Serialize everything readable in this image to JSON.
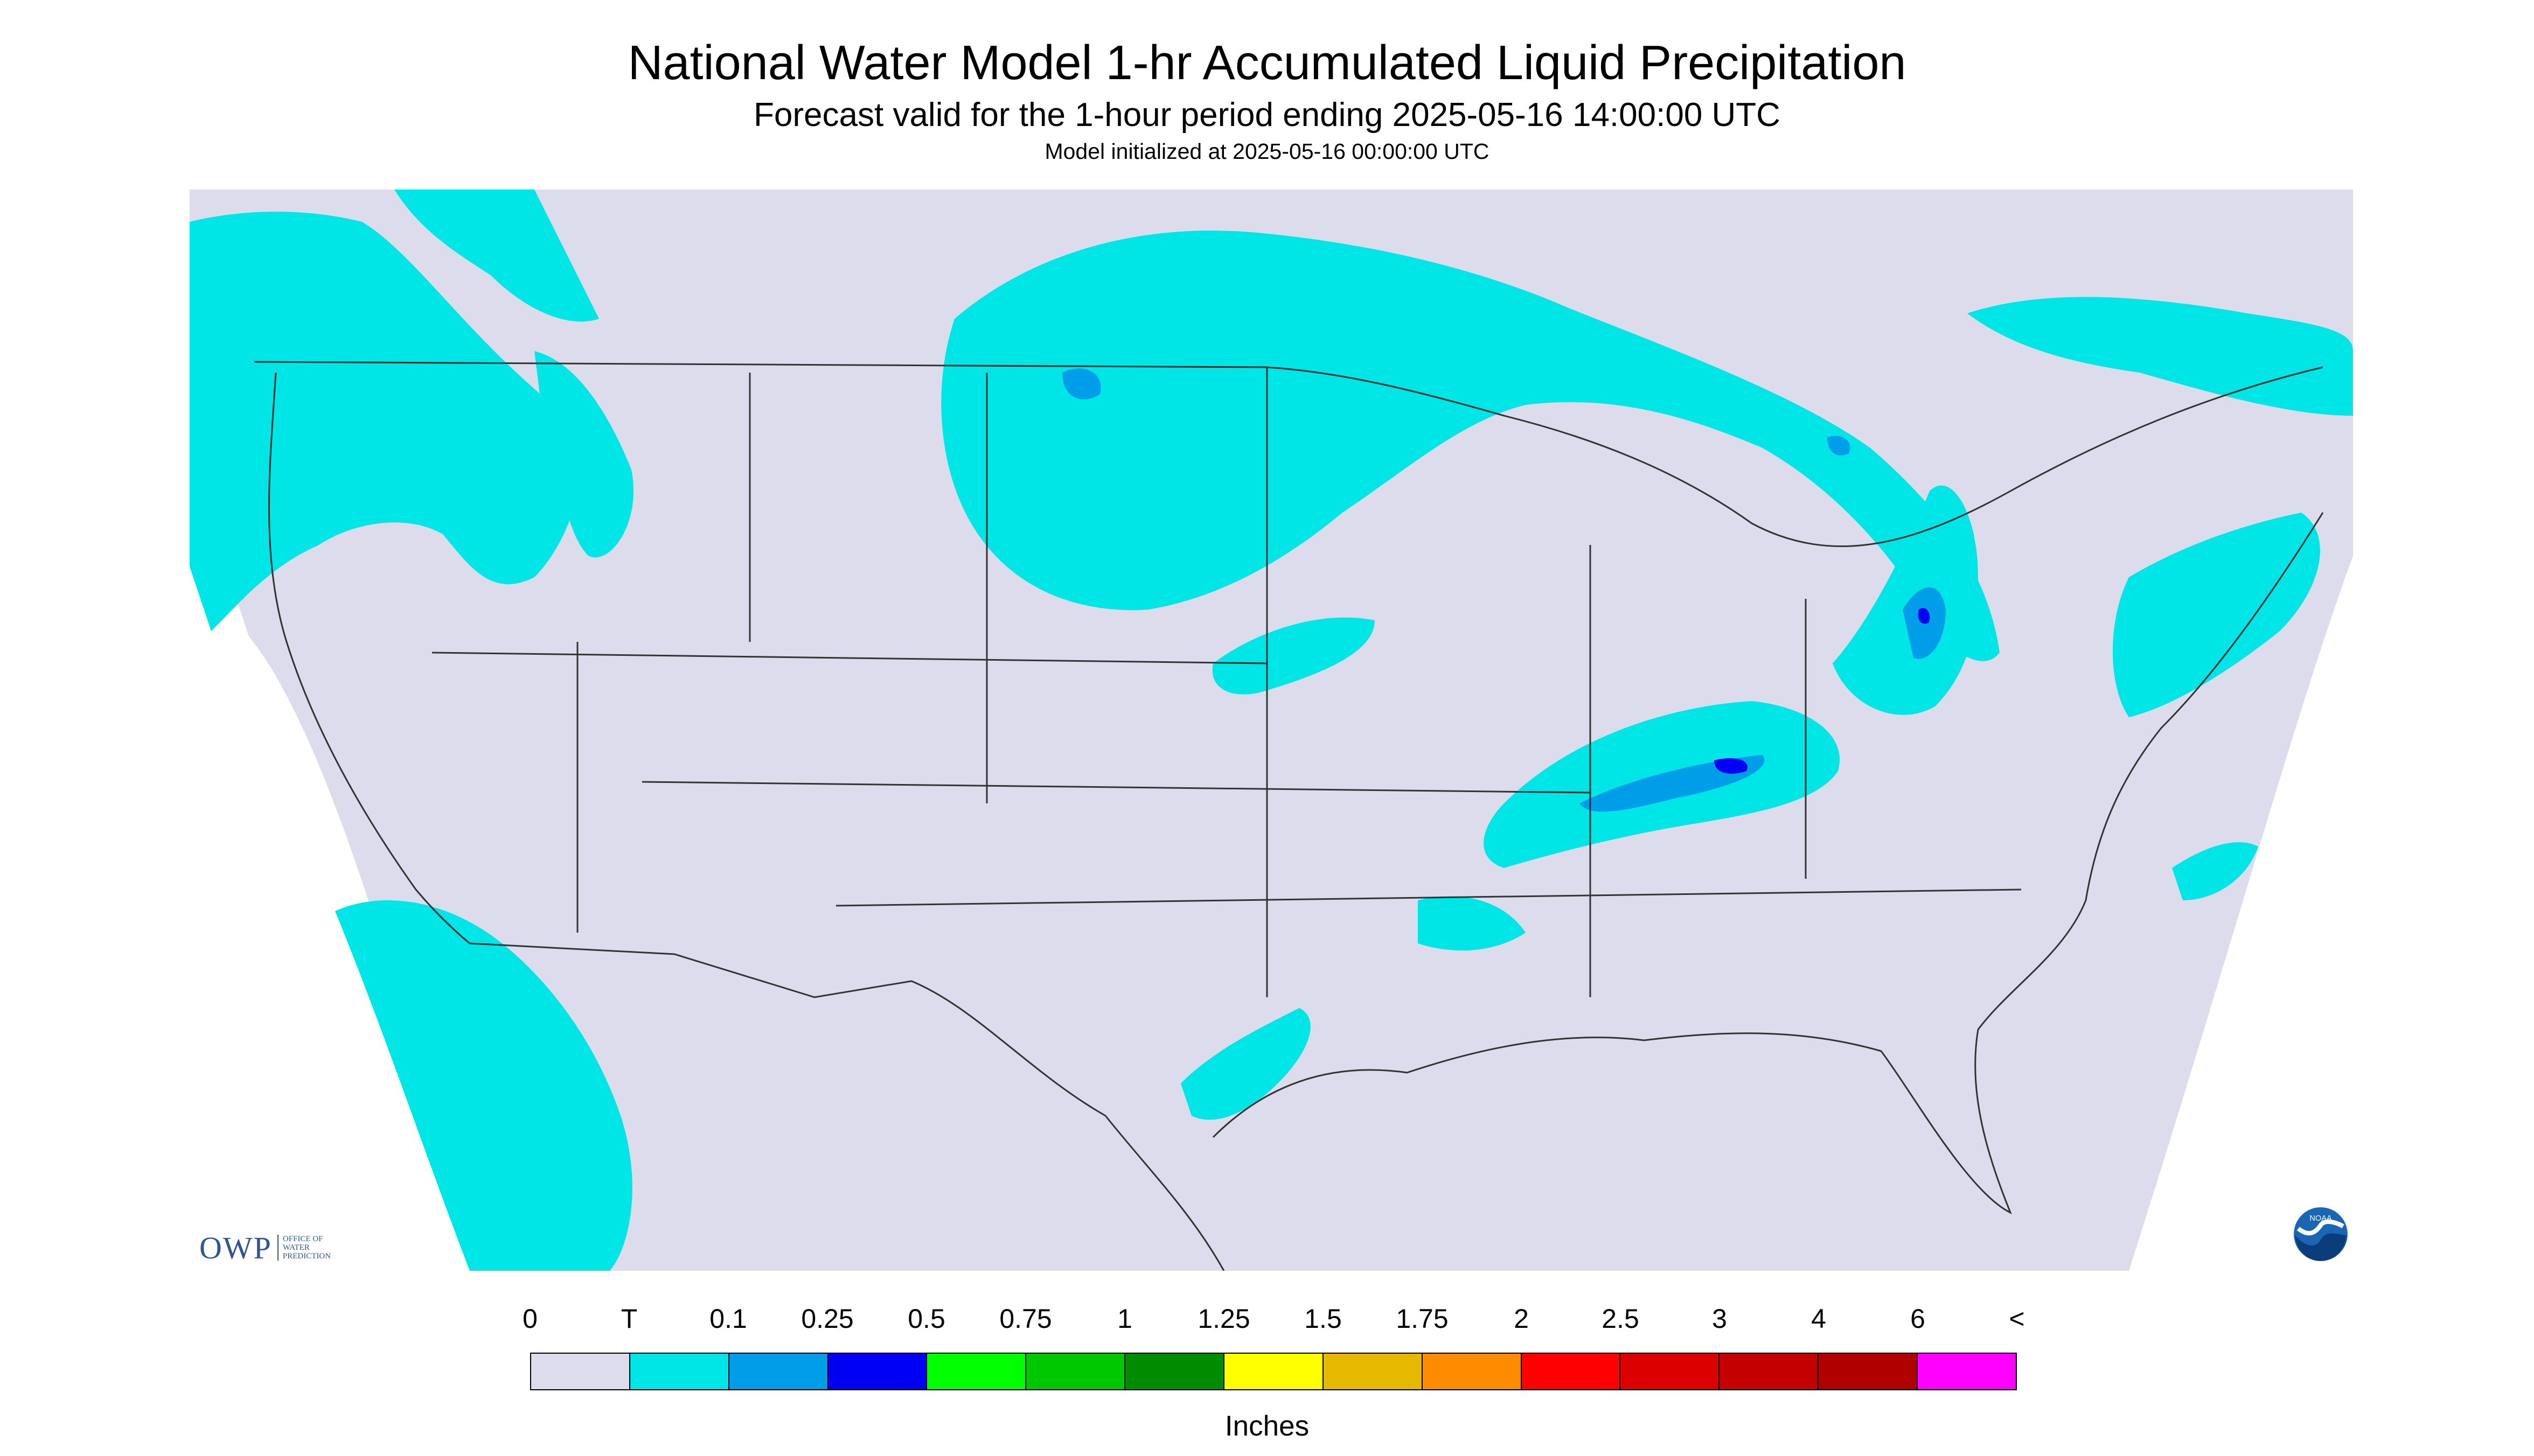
{
  "header": {
    "title": "National Water Model 1-hr Accumulated Liquid Precipitation",
    "subtitle": "Forecast valid for the 1-hour period ending 2025-05-16 14:00:00 UTC",
    "init_line": "Model initialized at 2025-05-16 00:00:00 UTC"
  },
  "map": {
    "background_color": "#dcdcec",
    "outside_color": "#ffffff",
    "boundary_color": "#333333",
    "regions": "Continental United States with parts of Canada and Mexico",
    "precip_areas": [
      {
        "name": "Pacific Northwest",
        "level": "T"
      },
      {
        "name": "Northern Plains / Upper Midwest",
        "level": "T"
      },
      {
        "name": "Great Lakes / Ontario / Quebec",
        "level": "T"
      },
      {
        "name": "Pennsylvania / New York",
        "level": "0.1"
      },
      {
        "name": "Tennessee Valley / Appalachians",
        "level": "0.25"
      },
      {
        "name": "Southern California / Baja",
        "level": "T"
      },
      {
        "name": "Texas Gulf Coast",
        "level": "T"
      },
      {
        "name": "Atlantic offshore",
        "level": "T"
      }
    ]
  },
  "legend": {
    "labels": [
      "0",
      "T",
      "0.1",
      "0.25",
      "0.5",
      "0.75",
      "1",
      "1.25",
      "1.5",
      "1.75",
      "2",
      "2.5",
      "3",
      "4",
      "6",
      "<"
    ],
    "colors": [
      "#dcdcec",
      "#00e5e5",
      "#009ee8",
      "#0000f5",
      "#00ff00",
      "#00c800",
      "#008c00",
      "#ffff00",
      "#e6b800",
      "#ff8c00",
      "#ff0000",
      "#dd0000",
      "#c40000",
      "#b00000",
      "#ff00ff",
      "#9955cc"
    ],
    "units": "Inches"
  },
  "logos": {
    "owp_mark": "OWP",
    "owp_text": [
      "OFFICE OF",
      "WATER",
      "PREDICTION"
    ],
    "noaa_text": "NOAA"
  },
  "icons": [
    "owp-logo",
    "noaa-logo"
  ]
}
